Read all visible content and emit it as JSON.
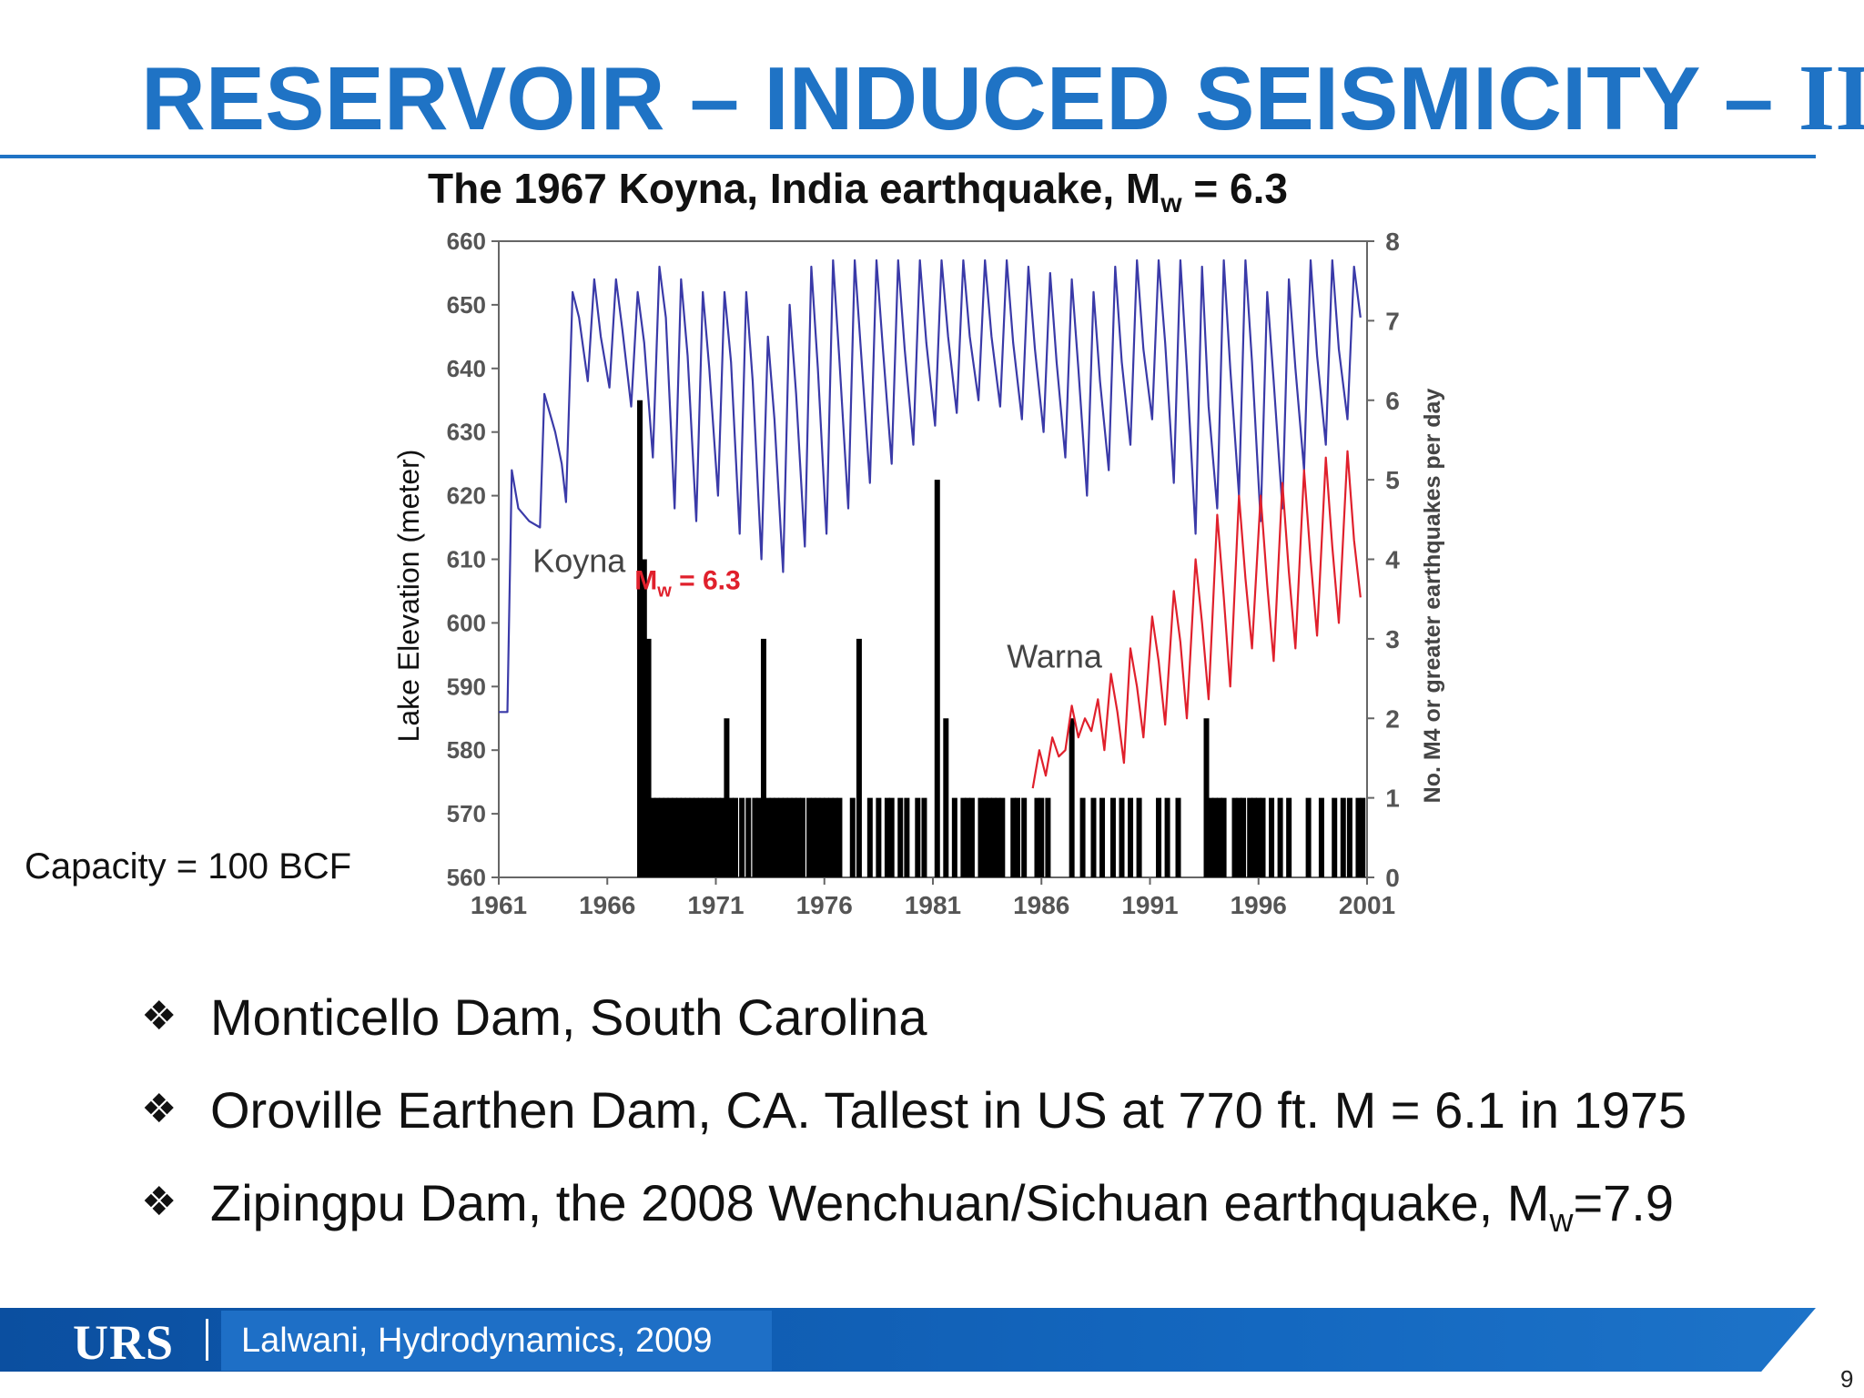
{
  "slide": {
    "title_main": "RESERVOIR – INDUCED SEISMICITY – ",
    "title_roman": "II",
    "capacity_note": "Capacity = 100 BCF",
    "page_number": "9"
  },
  "chart_title": {
    "main": "The 1967 Koyna, India earthquake, M",
    "sub": "w",
    "tail": " = 6.3"
  },
  "bullets": [
    {
      "text": "Monticello Dam, South Carolina",
      "sub": "",
      "tail": ""
    },
    {
      "text": "Oroville Earthen Dam, CA. Tallest in US at 770 ft. M = 6.1 in 1975",
      "sub": "",
      "tail": ""
    },
    {
      "text": "Zipingpu Dam, the 2008 Wenchuan/Sichuan earthquake, M",
      "sub": "w",
      "tail": "=7.9"
    }
  ],
  "footer": {
    "logo": "URS",
    "citation": "Lalwani, Hydrodynamics, 2009"
  },
  "icons": {
    "bullet": "diamond-bullet-icon"
  },
  "colors": {
    "title": "#1f73c5",
    "koyna": "#3a3aa8",
    "warna": "#e0202c",
    "bars": "#000000",
    "annotation": "#e0202c"
  },
  "chart_data": {
    "type": "line",
    "title": "The 1967 Koyna, India earthquake, Mw = 6.3",
    "xlabel": "",
    "ylabel": "Lake Elevation (meter)",
    "y2label": "No. M4 or greater earthquakes per day",
    "xlim": [
      1961,
      2001
    ],
    "ylim": [
      560,
      660
    ],
    "y2lim": [
      0,
      8
    ],
    "xticks": [
      1961,
      1966,
      1971,
      1976,
      1981,
      1986,
      1991,
      1996,
      2001
    ],
    "yticks": [
      560,
      570,
      580,
      590,
      600,
      610,
      620,
      630,
      640,
      650,
      660
    ],
    "y2ticks": [
      0,
      1,
      2,
      3,
      4,
      5,
      6,
      7,
      8
    ],
    "annotations": [
      {
        "text": "Koyna",
        "x": 1964.7,
        "y": 610
      },
      {
        "text": "Warna",
        "x": 1986.6,
        "y": 595
      },
      {
        "text_main": "M",
        "text_sub": "w",
        "text_tail": " = 6.3",
        "x": 1969.7,
        "y": 607,
        "color": "#e0202c"
      }
    ],
    "series": [
      {
        "name": "Koyna",
        "color": "#3a3aa8",
        "points": [
          [
            1961.0,
            586
          ],
          [
            1961.4,
            586
          ],
          [
            1961.6,
            624
          ],
          [
            1961.9,
            618
          ],
          [
            1962.4,
            616
          ],
          [
            1962.9,
            615
          ],
          [
            1963.1,
            636
          ],
          [
            1963.6,
            630
          ],
          [
            1963.9,
            625
          ],
          [
            1964.1,
            619
          ],
          [
            1964.4,
            652
          ],
          [
            1964.7,
            648
          ],
          [
            1965.1,
            638
          ],
          [
            1965.4,
            654
          ],
          [
            1965.7,
            645
          ],
          [
            1966.1,
            637
          ],
          [
            1966.4,
            654
          ],
          [
            1966.7,
            646
          ],
          [
            1967.1,
            634
          ],
          [
            1967.4,
            652
          ],
          [
            1967.7,
            644
          ],
          [
            1968.1,
            626
          ],
          [
            1968.4,
            656
          ],
          [
            1968.7,
            648
          ],
          [
            1969.1,
            618
          ],
          [
            1969.4,
            654
          ],
          [
            1969.7,
            642
          ],
          [
            1970.1,
            616
          ],
          [
            1970.4,
            652
          ],
          [
            1970.7,
            640
          ],
          [
            1971.1,
            620
          ],
          [
            1971.4,
            652
          ],
          [
            1971.7,
            641
          ],
          [
            1972.1,
            614
          ],
          [
            1972.4,
            652
          ],
          [
            1972.7,
            638
          ],
          [
            1973.1,
            610
          ],
          [
            1973.4,
            645
          ],
          [
            1973.7,
            632
          ],
          [
            1974.1,
            608
          ],
          [
            1974.4,
            650
          ],
          [
            1974.7,
            636
          ],
          [
            1975.1,
            612
          ],
          [
            1975.4,
            656
          ],
          [
            1975.7,
            640
          ],
          [
            1976.1,
            614
          ],
          [
            1976.4,
            657
          ],
          [
            1976.7,
            641
          ],
          [
            1977.1,
            618
          ],
          [
            1977.4,
            657
          ],
          [
            1977.7,
            642
          ],
          [
            1978.1,
            622
          ],
          [
            1978.4,
            657
          ],
          [
            1978.7,
            643
          ],
          [
            1979.1,
            625
          ],
          [
            1979.4,
            657
          ],
          [
            1979.7,
            643
          ],
          [
            1980.1,
            628
          ],
          [
            1980.4,
            657
          ],
          [
            1980.7,
            644
          ],
          [
            1981.1,
            631
          ],
          [
            1981.4,
            657
          ],
          [
            1981.7,
            645
          ],
          [
            1982.1,
            633
          ],
          [
            1982.4,
            657
          ],
          [
            1982.7,
            645
          ],
          [
            1983.1,
            635
          ],
          [
            1983.4,
            657
          ],
          [
            1983.7,
            645
          ],
          [
            1984.1,
            634
          ],
          [
            1984.4,
            657
          ],
          [
            1984.7,
            644
          ],
          [
            1985.1,
            632
          ],
          [
            1985.4,
            656
          ],
          [
            1985.7,
            643
          ],
          [
            1986.1,
            630
          ],
          [
            1986.4,
            655
          ],
          [
            1986.7,
            641
          ],
          [
            1987.1,
            626
          ],
          [
            1987.4,
            654
          ],
          [
            1987.7,
            640
          ],
          [
            1988.1,
            620
          ],
          [
            1988.4,
            652
          ],
          [
            1988.7,
            638
          ],
          [
            1989.1,
            624
          ],
          [
            1989.4,
            656
          ],
          [
            1989.7,
            641
          ],
          [
            1990.1,
            628
          ],
          [
            1990.4,
            657
          ],
          [
            1990.7,
            643
          ],
          [
            1991.1,
            632
          ],
          [
            1991.4,
            657
          ],
          [
            1991.7,
            644
          ],
          [
            1992.1,
            622
          ],
          [
            1992.4,
            657
          ],
          [
            1992.7,
            640
          ],
          [
            1993.1,
            614
          ],
          [
            1993.4,
            656
          ],
          [
            1993.7,
            634
          ],
          [
            1994.1,
            618
          ],
          [
            1994.4,
            657
          ],
          [
            1994.7,
            640
          ],
          [
            1995.1,
            620
          ],
          [
            1995.4,
            657
          ],
          [
            1995.7,
            641
          ],
          [
            1996.1,
            616
          ],
          [
            1996.4,
            652
          ],
          [
            1996.7,
            638
          ],
          [
            1997.1,
            618
          ],
          [
            1997.4,
            654
          ],
          [
            1997.7,
            640
          ],
          [
            1998.1,
            624
          ],
          [
            1998.4,
            657
          ],
          [
            1998.7,
            642
          ],
          [
            1999.1,
            628
          ],
          [
            1999.4,
            657
          ],
          [
            1999.7,
            643
          ],
          [
            2000.1,
            632
          ],
          [
            2000.4,
            656
          ],
          [
            2000.7,
            648
          ]
        ]
      },
      {
        "name": "Warna",
        "color": "#e0202c",
        "points": [
          [
            1985.6,
            574
          ],
          [
            1985.9,
            580
          ],
          [
            1986.2,
            576
          ],
          [
            1986.5,
            582
          ],
          [
            1986.8,
            579
          ],
          [
            1987.1,
            580
          ],
          [
            1987.4,
            587
          ],
          [
            1987.7,
            582
          ],
          [
            1988.0,
            585
          ],
          [
            1988.3,
            583
          ],
          [
            1988.6,
            588
          ],
          [
            1988.9,
            580
          ],
          [
            1989.2,
            592
          ],
          [
            1989.5,
            586
          ],
          [
            1989.8,
            578
          ],
          [
            1990.1,
            596
          ],
          [
            1990.4,
            590
          ],
          [
            1990.7,
            582
          ],
          [
            1991.1,
            601
          ],
          [
            1991.4,
            594
          ],
          [
            1991.7,
            584
          ],
          [
            1992.1,
            605
          ],
          [
            1992.4,
            597
          ],
          [
            1992.7,
            585
          ],
          [
            1993.1,
            610
          ],
          [
            1993.4,
            600
          ],
          [
            1993.7,
            588
          ],
          [
            1994.1,
            617
          ],
          [
            1994.4,
            604
          ],
          [
            1994.7,
            590
          ],
          [
            1995.1,
            620
          ],
          [
            1995.4,
            607
          ],
          [
            1995.7,
            596
          ],
          [
            1996.1,
            620
          ],
          [
            1996.4,
            606
          ],
          [
            1996.7,
            594
          ],
          [
            1997.1,
            622
          ],
          [
            1997.4,
            608
          ],
          [
            1997.7,
            596
          ],
          [
            1998.1,
            624
          ],
          [
            1998.4,
            610
          ],
          [
            1998.7,
            598
          ],
          [
            1999.1,
            626
          ],
          [
            1999.4,
            612
          ],
          [
            1999.7,
            600
          ],
          [
            2000.1,
            627
          ],
          [
            2000.4,
            613
          ],
          [
            2000.7,
            604
          ]
        ]
      },
      {
        "name": "",
        "type": "bar",
        "color": "#000000",
        "axis": "y2",
        "x": [
          1967.5,
          1967.7,
          1967.9,
          1968.1,
          1968.3,
          1968.5,
          1968.7,
          1968.9,
          1969.1,
          1969.3,
          1969.5,
          1969.7,
          1969.9,
          1970.1,
          1970.3,
          1970.5,
          1970.7,
          1970.9,
          1971.1,
          1971.3,
          1971.5,
          1971.7,
          1971.9,
          1972.2,
          1972.5,
          1972.8,
          1973.0,
          1973.2,
          1973.4,
          1973.6,
          1973.8,
          1974.0,
          1974.2,
          1974.4,
          1974.6,
          1974.8,
          1975.0,
          1975.3,
          1975.5,
          1975.7,
          1975.9,
          1976.1,
          1976.3,
          1976.5,
          1976.7,
          1977.3,
          1977.6,
          1978.1,
          1978.5,
          1978.9,
          1979.1,
          1979.5,
          1979.8,
          1980.3,
          1980.6,
          1981.2,
          1981.6,
          1982.0,
          1982.4,
          1982.6,
          1982.8,
          1983.2,
          1983.4,
          1983.6,
          1983.8,
          1984.0,
          1984.2,
          1984.7,
          1984.9,
          1985.2,
          1985.8,
          1986.0,
          1986.3,
          1987.4,
          1987.9,
          1988.4,
          1988.8,
          1989.3,
          1989.7,
          1990.1,
          1990.5,
          1991.4,
          1991.8,
          1992.3,
          1993.6,
          1993.8,
          1994.0,
          1994.2,
          1994.4,
          1994.9,
          1995.1,
          1995.3,
          1995.6,
          1995.8,
          1996.0,
          1996.2,
          1996.6,
          1997.0,
          1997.4,
          1998.3,
          1998.9,
          1999.5,
          1999.9,
          2000.2,
          2000.6,
          2000.8
        ],
        "values": [
          6,
          4,
          3,
          1,
          1,
          1,
          1,
          1,
          1,
          1,
          1,
          1,
          1,
          1,
          1,
          1,
          1,
          1,
          1,
          1,
          2,
          1,
          1,
          1,
          1,
          1,
          1,
          3,
          1,
          1,
          1,
          1,
          1,
          1,
          1,
          1,
          1,
          1,
          1,
          1,
          1,
          1,
          1,
          1,
          1,
          1,
          3,
          1,
          1,
          1,
          1,
          1,
          1,
          1,
          1,
          5,
          2,
          1,
          1,
          1,
          1,
          1,
          1,
          1,
          1,
          1,
          1,
          1,
          1,
          1,
          1,
          1,
          1,
          2,
          1,
          1,
          1,
          1,
          1,
          1,
          1,
          1,
          1,
          1,
          2,
          1,
          1,
          1,
          1,
          1,
          1,
          1,
          1,
          1,
          1,
          1,
          1,
          1,
          1,
          1,
          1,
          1,
          1,
          1,
          1,
          1
        ]
      }
    ],
    "grid": false,
    "legend": "none"
  }
}
